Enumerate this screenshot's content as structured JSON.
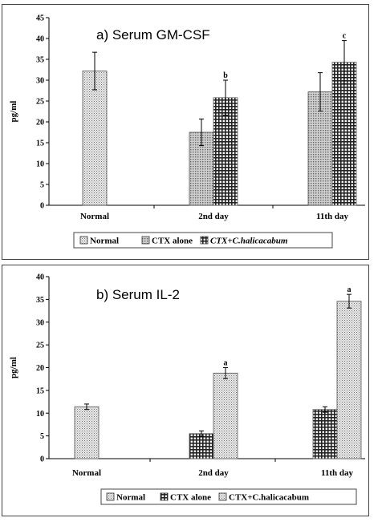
{
  "chart_data": [
    {
      "type": "bar",
      "title": "a) Serum GM-CSF",
      "ylabel": "pg/ml",
      "ylim": [
        0,
        45
      ],
      "yticks": [
        0,
        5,
        10,
        15,
        20,
        25,
        30,
        35,
        40,
        45
      ],
      "categories": [
        "Normal",
        "2nd day",
        "11th day"
      ],
      "series": [
        {
          "name": "Normal",
          "values": [
            32.2,
            null,
            null
          ],
          "errors": [
            4.5,
            null,
            null
          ],
          "pattern": "dots"
        },
        {
          "name": "CTX  alone",
          "values": [
            null,
            17.5,
            27.2
          ],
          "errors": [
            null,
            3.2,
            4.6
          ],
          "pattern": "grid"
        },
        {
          "name": "CTX+C.halicacabum",
          "values": [
            null,
            25.8,
            34.3
          ],
          "errors": [
            null,
            4.2,
            5.2
          ],
          "pattern": "crosshatch"
        }
      ],
      "annotations": [
        {
          "category": "2nd day",
          "series": "CTX+C.halicacabum",
          "text": "b"
        },
        {
          "category": "11th day",
          "series": "CTX+C.halicacabum",
          "text": "c"
        }
      ],
      "legend_position": "bottom"
    },
    {
      "type": "bar",
      "title": "b) Serum IL-2",
      "ylabel": "pg/ml",
      "ylim": [
        0,
        40
      ],
      "yticks": [
        0,
        5,
        10,
        15,
        20,
        25,
        30,
        35,
        40
      ],
      "categories": [
        "Normal",
        "2nd day",
        "11th day"
      ],
      "series": [
        {
          "name": "Normal",
          "values": [
            11.4,
            null,
            null
          ],
          "errors": [
            0.6,
            null,
            null
          ],
          "pattern": "dots"
        },
        {
          "name": "CTX  alone",
          "values": [
            null,
            5.5,
            10.8
          ],
          "errors": [
            null,
            0.6,
            0.6
          ],
          "pattern": "crosshatch"
        },
        {
          "name": "CTX+C.halicacabum",
          "values": [
            null,
            18.8,
            34.6
          ],
          "errors": [
            null,
            1.2,
            1.5
          ],
          "pattern": "dots"
        }
      ],
      "annotations": [
        {
          "category": "2nd day",
          "series": "CTX+C.halicacabum",
          "text": "a"
        },
        {
          "category": "11th day",
          "series": "CTX+C.halicacabum",
          "text": "a"
        }
      ],
      "legend_position": "bottom"
    }
  ]
}
